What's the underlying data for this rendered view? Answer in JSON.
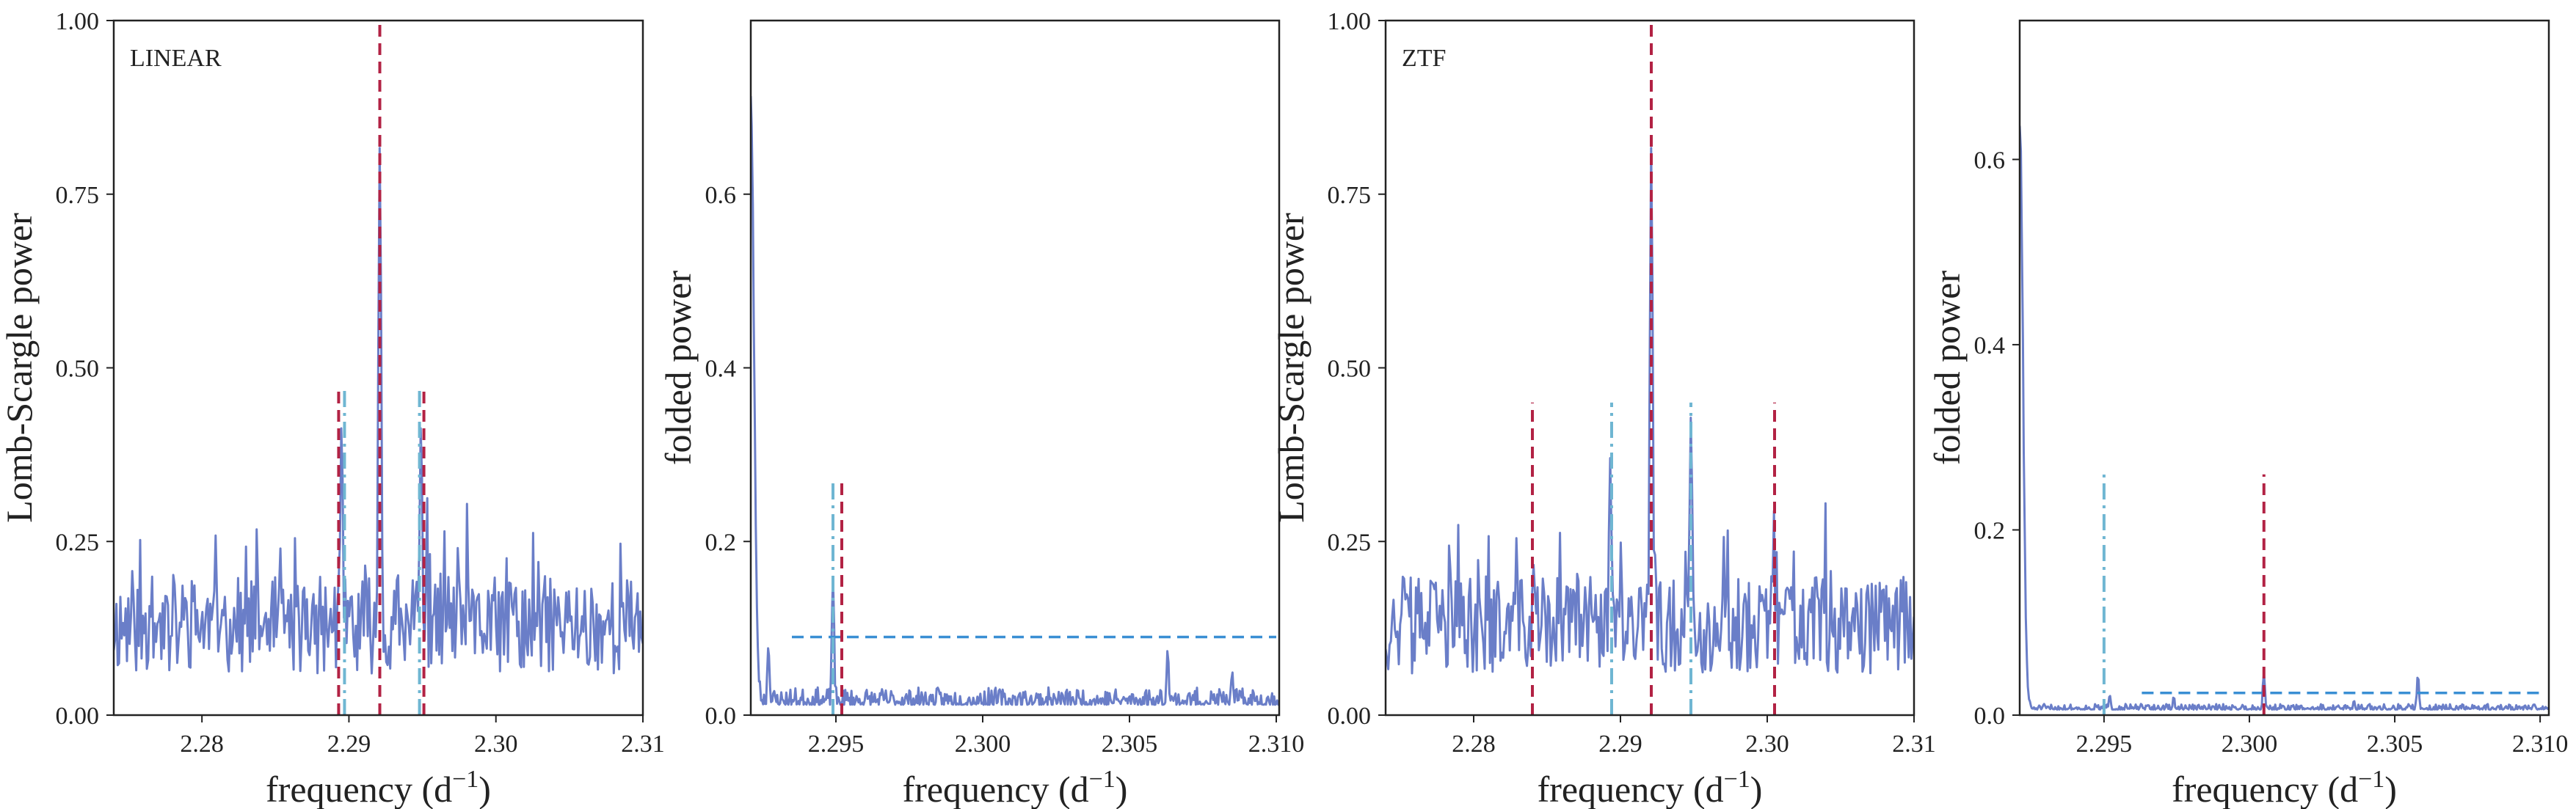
{
  "figure": {
    "xlabel_base": "frequency (d",
    "xlabel_exp": "−1",
    "xlabel_end": ")"
  },
  "colors": {
    "series": "#6a7ec8",
    "marker_red": "#b22244",
    "marker_dashdot": "#6fb6d2",
    "threshold": "#3a8fd4",
    "frame": "#222222"
  },
  "chart_data": [
    {
      "type": "line",
      "panel_label": "LINEAR",
      "xlabel": "frequency (d−1)",
      "ylabel": "Lomb-Scargle power",
      "xlim": [
        2.274,
        2.31
      ],
      "ylim": [
        0,
        1
      ],
      "xticks": [
        2.28,
        2.29,
        2.3,
        2.31
      ],
      "xtick_labels": [
        "2.28",
        "2.29",
        "2.30",
        "2.31"
      ],
      "yticks": [
        0,
        0.25,
        0.5,
        0.75,
        1.0
      ],
      "ytick_labels": [
        "0.00",
        "0.25",
        "0.50",
        "0.75",
        "1.00"
      ],
      "series": {
        "kind": "periodogram",
        "baseline": 0.13,
        "noise": 0.07,
        "seed": 11,
        "peaks": [
          [
            2.2921,
            0.82
          ],
          [
            2.2895,
            0.42
          ],
          [
            2.2949,
            0.42
          ]
        ],
        "x": [],
        "y": []
      },
      "vlines": [
        {
          "x": 2.2921,
          "y0": 0,
          "y1": 1,
          "style": "dashed",
          "color": "#b22244"
        },
        {
          "x": 2.2893,
          "y0": 0,
          "y1": 0.47,
          "style": "dashed",
          "color": "#b22244"
        },
        {
          "x": 2.2897,
          "y0": 0,
          "y1": 0.47,
          "style": "dashdot",
          "color": "#6fb6d2"
        },
        {
          "x": 2.2948,
          "y0": 0,
          "y1": 0.47,
          "style": "dashdot",
          "color": "#6fb6d2"
        },
        {
          "x": 2.2951,
          "y0": 0,
          "y1": 0.47,
          "style": "dashed",
          "color": "#b22244"
        }
      ],
      "hlines": []
    },
    {
      "type": "line",
      "panel_label": "",
      "xlabel": "frequency (d−1)",
      "ylabel": "folded power",
      "xlim": [
        2.2921,
        2.3101
      ],
      "ylim": [
        0,
        0.8
      ],
      "xticks": [
        2.295,
        2.3,
        2.305,
        2.31
      ],
      "xtick_labels": [
        "2.295",
        "2.300",
        "2.305",
        "2.310"
      ],
      "yticks": [
        0,
        0.2,
        0.4,
        0.6
      ],
      "ytick_labels": [
        "0.0",
        "0.2",
        "0.4",
        "0.6"
      ],
      "series": {
        "kind": "folded",
        "baseline": 0.012,
        "noise": 0.02,
        "seed": 23,
        "start_peak": 0.7,
        "peaks": [
          [
            2.2949,
            0.16
          ],
          [
            2.2927,
            0.08
          ],
          [
            2.3063,
            0.075
          ],
          [
            2.3085,
            0.05
          ]
        ],
        "x": [],
        "y": []
      },
      "vlines": [
        {
          "x": 2.2949,
          "y0": 0,
          "y1": 0.27,
          "style": "dashdot",
          "color": "#6fb6d2"
        },
        {
          "x": 2.2952,
          "y0": 0,
          "y1": 0.27,
          "style": "dashed",
          "color": "#b22244"
        }
      ],
      "hlines": [
        {
          "y": 0.09,
          "x0": 2.2935,
          "x1": 2.31,
          "style": "dashed",
          "color": "#3a8fd4"
        }
      ]
    },
    {
      "type": "line",
      "panel_label": "ZTF",
      "xlabel": "frequency (d−1)",
      "ylabel": "Lomb-Scargle power",
      "xlim": [
        2.274,
        2.31
      ],
      "ylim": [
        0,
        1
      ],
      "xticks": [
        2.28,
        2.29,
        2.3,
        2.31
      ],
      "xtick_labels": [
        "2.28",
        "2.29",
        "2.30",
        "2.31"
      ],
      "yticks": [
        0,
        0.25,
        0.5,
        0.75,
        1.0
      ],
      "ytick_labels": [
        "0.00",
        "0.25",
        "0.50",
        "0.75",
        "1.00"
      ],
      "series": {
        "kind": "periodogram",
        "baseline": 0.13,
        "noise": 0.07,
        "seed": 37,
        "peaks": [
          [
            2.2921,
            0.82
          ],
          [
            2.2948,
            0.43
          ],
          [
            2.2893,
            0.37
          ],
          [
            2.2841,
            0.22
          ],
          [
            2.3004,
            0.2
          ]
        ],
        "x": [],
        "y": []
      },
      "vlines": [
        {
          "x": 2.2921,
          "y0": 0,
          "y1": 1,
          "style": "dashed",
          "color": "#b22244"
        },
        {
          "x": 2.284,
          "y0": 0,
          "y1": 0.45,
          "style": "dashed",
          "color": "#b22244"
        },
        {
          "x": 2.3005,
          "y0": 0,
          "y1": 0.45,
          "style": "dashed",
          "color": "#b22244"
        },
        {
          "x": 2.2894,
          "y0": 0,
          "y1": 0.45,
          "style": "dashdot",
          "color": "#6fb6d2"
        },
        {
          "x": 2.2948,
          "y0": 0,
          "y1": 0.45,
          "style": "dashdot",
          "color": "#6fb6d2"
        }
      ],
      "hlines": []
    },
    {
      "type": "line",
      "panel_label": "",
      "xlabel": "frequency (d−1)",
      "ylabel": "folded power",
      "xlim": [
        2.2921,
        2.3103
      ],
      "ylim": [
        0,
        0.75
      ],
      "xticks": [
        2.295,
        2.3,
        2.305,
        2.31
      ],
      "xtick_labels": [
        "2.295",
        "2.300",
        "2.305",
        "2.310"
      ],
      "yticks": [
        0,
        0.2,
        0.4,
        0.6
      ],
      "ytick_labels": [
        "0.0",
        "0.2",
        "0.4",
        "0.6"
      ],
      "series": {
        "kind": "folded",
        "baseline": 0.006,
        "noise": 0.006,
        "seed": 51,
        "start_peak": 0.63,
        "peaks": [
          [
            2.3005,
            0.045
          ],
          [
            2.3058,
            0.043
          ],
          [
            2.2952,
            0.022
          ],
          [
            2.2974,
            0.02
          ],
          [
            2.3036,
            0.016
          ]
        ],
        "x": [],
        "y": []
      },
      "vlines": [
        {
          "x": 2.295,
          "y0": 0,
          "y1": 0.26,
          "style": "dashdot",
          "color": "#6fb6d2"
        },
        {
          "x": 2.3005,
          "y0": 0,
          "y1": 0.26,
          "style": "dashed",
          "color": "#b22244"
        }
      ],
      "hlines": [
        {
          "y": 0.024,
          "x0": 2.2963,
          "x1": 2.31,
          "style": "dashed",
          "color": "#3a8fd4"
        }
      ]
    }
  ]
}
